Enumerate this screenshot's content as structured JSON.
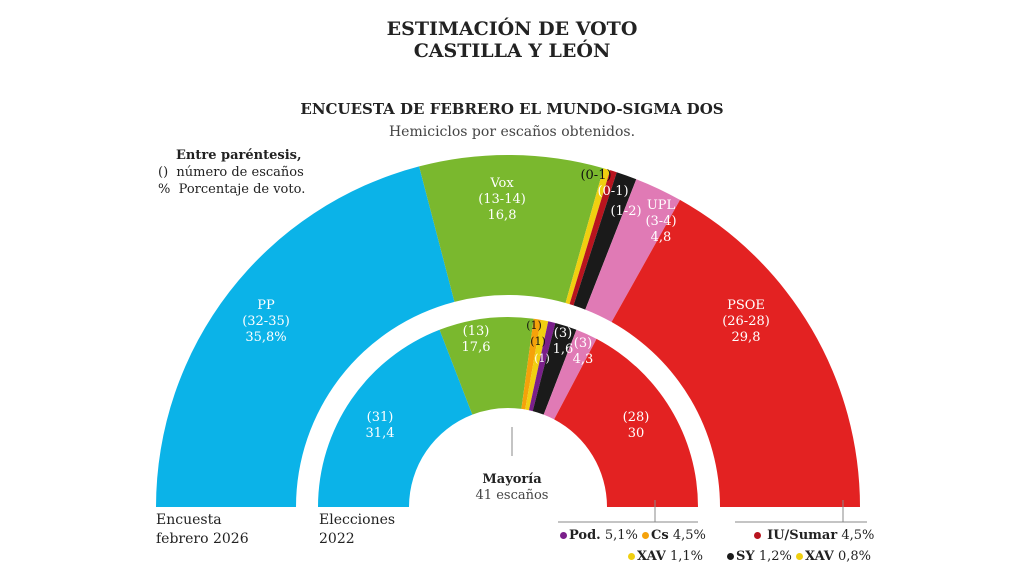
{
  "title_line1": "ESTIMACIÓN DE VOTO",
  "title_line2": "CASTILLA Y LEÓN",
  "subtitle": "ENCUESTA DE FEBRERO EL MUNDO-SIGMA DOS",
  "caption": "Hemiciclos por escaños obtenidos.",
  "key": {
    "head": "Entre paréntesis,",
    "sym1": "()",
    "txt1": "número de escaños",
    "sym2": "%",
    "txt2": "Porcentaje de voto."
  },
  "majority": {
    "label": "Mayoría",
    "seats": "41 escaños"
  },
  "chart_data": [
    {
      "type": "pie",
      "name": "Encuesta febrero 2026",
      "label_line1": "Encuesta",
      "label_line2": "febrero 2026",
      "total_seats": 81,
      "parties": [
        {
          "party": "PP",
          "seats": "(32-35)",
          "seats_mid": 33.5,
          "vote": "35,8%",
          "color": "#0bb3e8"
        },
        {
          "party": "Vox",
          "seats": "(13-14)",
          "seats_mid": 13.5,
          "vote": "16,8",
          "color": "#7ab82e"
        },
        {
          "party": "XAV",
          "seats": "(0-1)",
          "seats_mid": 0.5,
          "vote": "0,8%",
          "color": "#f0cf10"
        },
        {
          "party": "IU/Sumar",
          "seats": "(0-1)",
          "seats_mid": 0.5,
          "vote": "4,5%",
          "color": "#b8141e"
        },
        {
          "party": "SY",
          "seats": "(1-2)",
          "seats_mid": 1.5,
          "vote": "1,2%",
          "color": "#1a1a1a"
        },
        {
          "party": "UPL",
          "seats": "(3-4)",
          "seats_mid": 3.5,
          "vote": "4,8",
          "color": "#e07ab5"
        },
        {
          "party": "PSOE",
          "seats": "(26-28)",
          "seats_mid": 27,
          "vote": "29,8",
          "color": "#e32222"
        }
      ]
    },
    {
      "type": "pie",
      "name": "Elecciones 2022",
      "label_line1": "Elecciones",
      "label_line2": "2022",
      "total_seats": 81,
      "parties": [
        {
          "party": "PP",
          "seats": "(31)",
          "seats_mid": 31,
          "vote": "31,4",
          "color": "#0bb3e8"
        },
        {
          "party": "Vox",
          "seats": "(13)",
          "seats_mid": 13,
          "vote": "17,6",
          "color": "#7ab82e"
        },
        {
          "party": "Cs",
          "seats": "(1)",
          "seats_mid": 1,
          "vote": "4,5%",
          "color": "#f5a20a"
        },
        {
          "party": "XAV",
          "seats": "(1)",
          "seats_mid": 1,
          "vote": "1,1%",
          "color": "#f0cf10"
        },
        {
          "party": "Pod.",
          "seats": "(1)",
          "seats_mid": 1,
          "vote": "5,1%",
          "color": "#7a1f8a"
        },
        {
          "party": "SY",
          "seats": "(3)",
          "seats_mid": 3,
          "vote": "1,6",
          "color": "#1a1a1a"
        },
        {
          "party": "UPL",
          "seats": "(3)",
          "seats_mid": 3,
          "vote": "4,3",
          "color": "#e07ab5"
        },
        {
          "party": "PSOE",
          "seats": "(28)",
          "seats_mid": 28,
          "vote": "30",
          "color": "#e32222"
        }
      ]
    }
  ]
}
